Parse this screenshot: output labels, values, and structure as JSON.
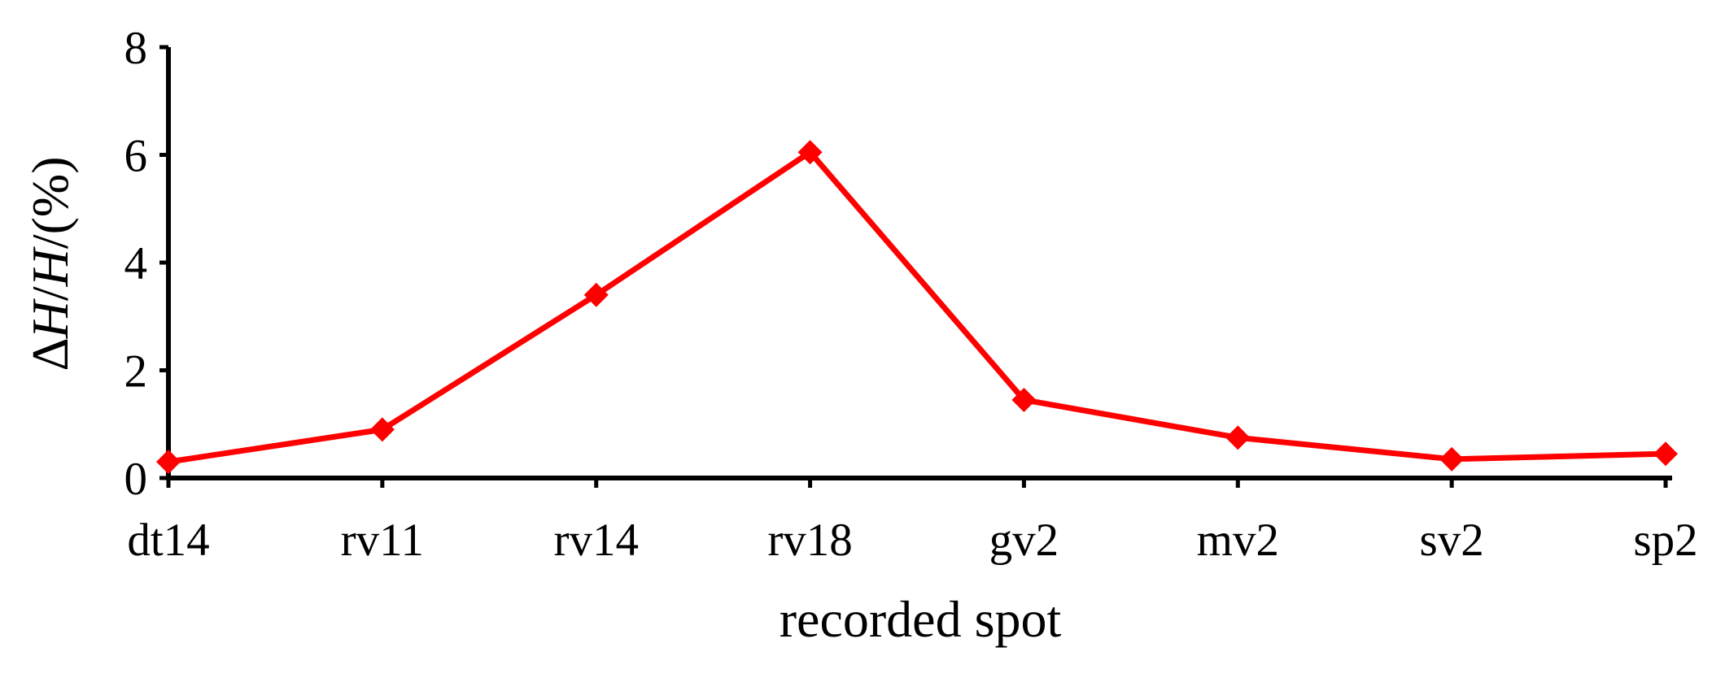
{
  "chart_data": {
    "type": "line",
    "title": "",
    "xlabel": "recorded spot",
    "ylabel": "∆H/H/(%)",
    "ylabel_parts": [
      {
        "text": "∆",
        "italic": false
      },
      {
        "text": "H",
        "italic": true
      },
      {
        "text": "/",
        "italic": false
      },
      {
        "text": "H",
        "italic": true
      },
      {
        "text": "/(%)",
        "italic": false
      }
    ],
    "categories": [
      "dt14",
      "rv11",
      "rv14",
      "rv18",
      "gv2",
      "mv2",
      "sv2",
      "sp2"
    ],
    "series": [
      {
        "values": [
          0.3,
          0.9,
          3.4,
          6.05,
          1.45,
          0.75,
          0.35,
          0.45
        ],
        "color": "#ff0000",
        "marker": "diamond"
      }
    ],
    "ylim": [
      0,
      8
    ],
    "yticks": [
      0,
      2,
      4,
      6,
      8
    ],
    "grid": false,
    "legend": "none"
  }
}
